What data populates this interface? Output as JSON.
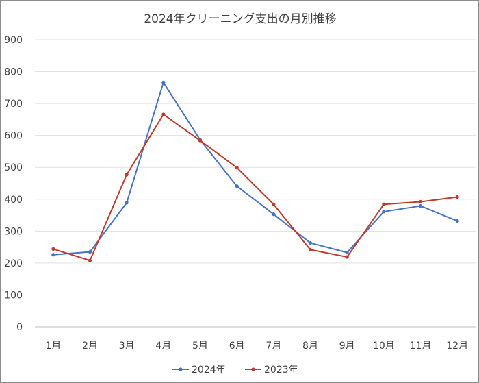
{
  "chart_data": {
    "type": "line",
    "title": "2024年クリーニング支出の月別推移",
    "categories": [
      "1月",
      "2月",
      "3月",
      "4月",
      "5月",
      "6月",
      "7月",
      "8月",
      "9月",
      "10月",
      "11月",
      "12月"
    ],
    "series": [
      {
        "name": "2024年",
        "color": "#4472c4",
        "values": [
          226,
          235,
          389,
          766,
          586,
          441,
          353,
          263,
          233,
          361,
          379,
          332
        ]
      },
      {
        "name": "2023年",
        "color": "#c0392b",
        "values": [
          244,
          208,
          477,
          666,
          584,
          499,
          384,
          242,
          219,
          384,
          392,
          407
        ]
      }
    ],
    "ylim": [
      0,
      900
    ],
    "yticks": [
      0,
      100,
      200,
      300,
      400,
      500,
      600,
      700,
      800,
      900
    ],
    "grid": true,
    "legend_position": "bottom"
  }
}
